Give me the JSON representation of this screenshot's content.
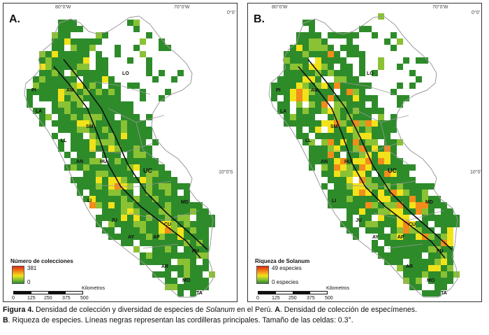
{
  "colors": {
    "low": "#2e8b2a",
    "mid_low": "#8ac234",
    "mid": "#f2e21a",
    "mid_high": "#f28c1a",
    "high": "#e02a12",
    "boundary": "#111111",
    "internal_boundary": "#9a9a9a"
  },
  "coordinates": {
    "lon_80": "80°0'W",
    "lon_70": "70°0'W",
    "lat_0": "0°0'",
    "lat_10": "10°0'S"
  },
  "region_labels": [
    "LO",
    "PI",
    "AM",
    "LA",
    "SM",
    "LL",
    "AN",
    "HU",
    "LI",
    "JU",
    "MD",
    "CU",
    "AY",
    "AP",
    "PU",
    "AR",
    "MO",
    "TA"
  ],
  "uc_label": "UC",
  "panels": {
    "a": {
      "letter": "A.",
      "legend_title": "Número de colecciones",
      "legend_max": "381",
      "legend_min": "0"
    },
    "b": {
      "letter": "B.",
      "legend_title": "Riqueza de Solanum",
      "legend_max": "49 especies",
      "legend_min": "0 especies"
    }
  },
  "scale": {
    "unit": "Kilometros",
    "ticks": [
      "0",
      "125",
      "250",
      "375",
      "500"
    ]
  },
  "caption": {
    "line1_a": "Figura 4.",
    "line1_b": " Densidad de colección y diversidad de especies de ",
    "line1_c": "Solanum",
    "line1_d": " en el Perú. ",
    "line1_e": "A",
    "line1_f": ". Densidad de colección de especímenes.",
    "line2_a": "B",
    "line2_b": ". Riqueza de especies. Líneas negras representan las cordilleras principales. Tamaño de las celdas: 0.3°."
  }
}
